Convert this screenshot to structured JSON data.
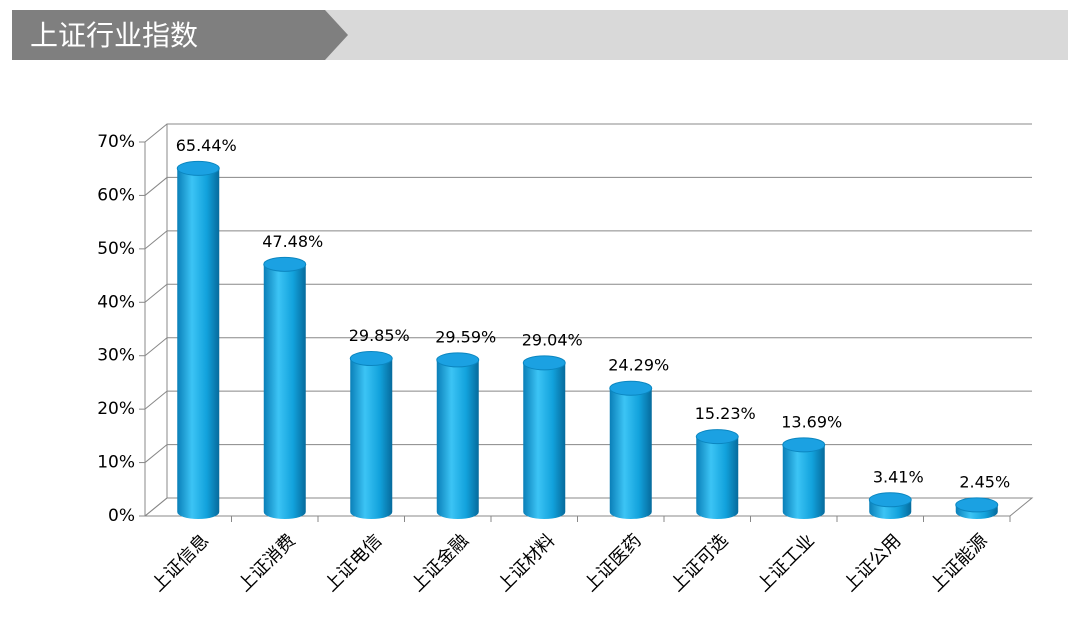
{
  "chart_data": {
    "type": "bar",
    "title": "上证行业指数",
    "categories": [
      "上证信息",
      "上证消费",
      "上证电信",
      "上证金融",
      "上证材料",
      "上证医药",
      "上证可选",
      "上证工业",
      "上证公用",
      "上证能源"
    ],
    "values": [
      65.44,
      47.48,
      29.85,
      29.59,
      29.04,
      24.29,
      15.23,
      13.69,
      3.41,
      2.45
    ],
    "value_labels": [
      "65.44%",
      "47.48%",
      "29.85%",
      "29.59%",
      "29.04%",
      "24.29%",
      "15.23%",
      "13.69%",
      "3.41%",
      "2.45%"
    ],
    "color": "#1ba1e2",
    "ylim": [
      0,
      70
    ],
    "yticks": [
      {
        "value": 0,
        "label": "0%"
      },
      {
        "value": 10,
        "label": "10%"
      },
      {
        "value": 20,
        "label": "20%"
      },
      {
        "value": 30,
        "label": "30%"
      },
      {
        "value": 40,
        "label": "40%"
      },
      {
        "value": 50,
        "label": "50%"
      },
      {
        "value": 60,
        "label": "60%"
      },
      {
        "value": 70,
        "label": "70%"
      }
    ],
    "grid": true
  }
}
